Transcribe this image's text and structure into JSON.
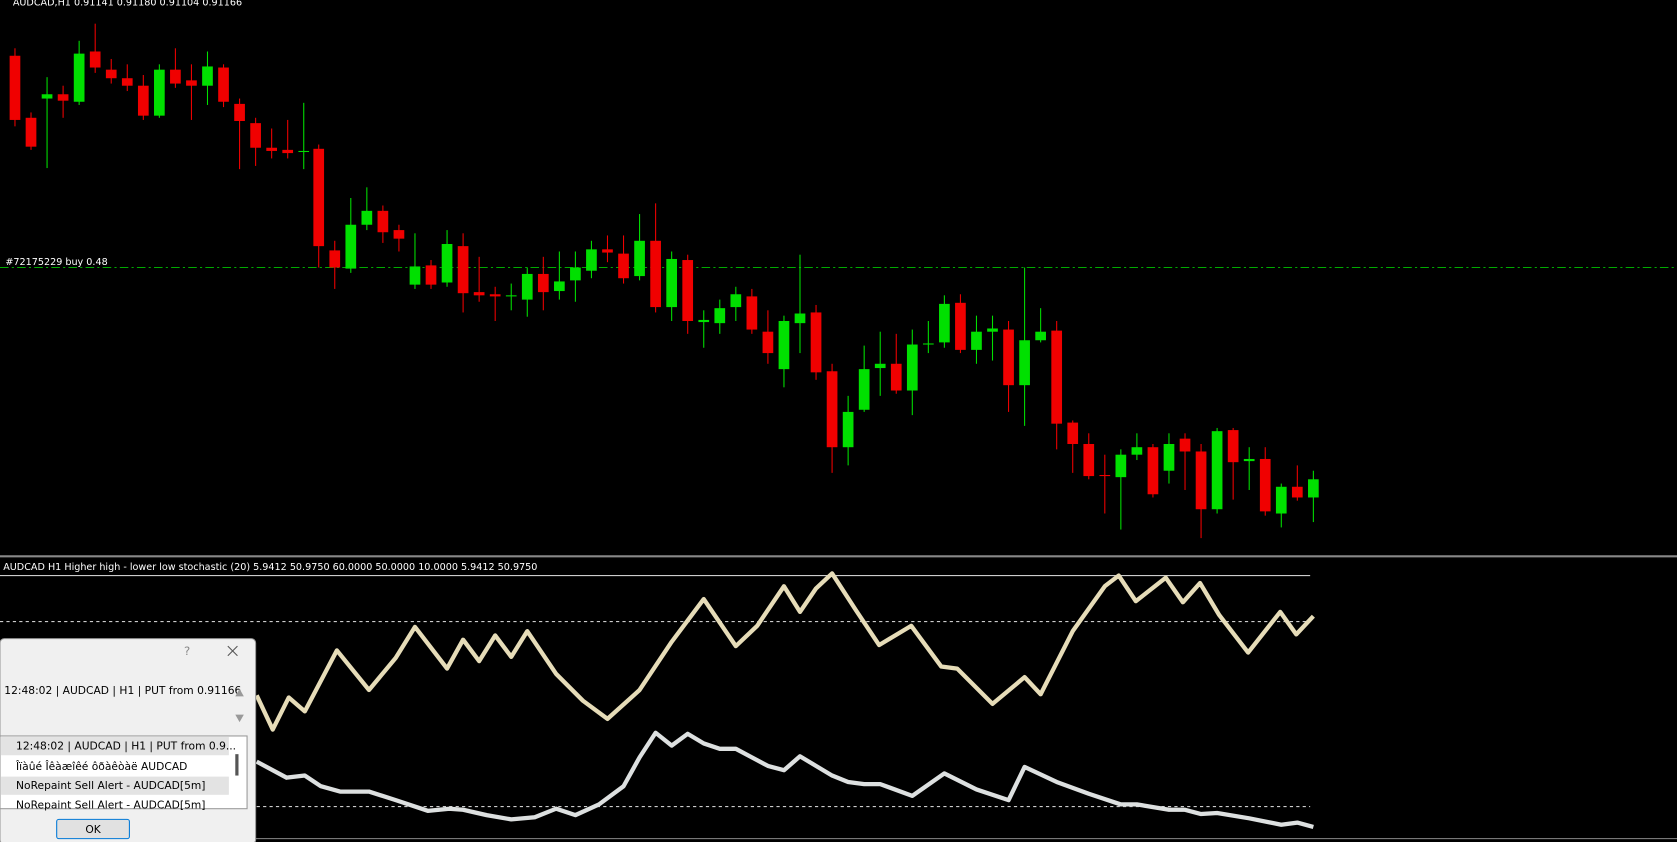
{
  "chart_window": {
    "header": "AUDCAD,H1  0.91141 0.91180 0.91104 0.91166",
    "order_label": "#72175229 buy 0.48"
  },
  "indicator": {
    "label": "AUDCAD H1  Higher high - lower low stochastic (20) 5.9412 50.9750 60.0000 50.0000 10.0000 5.9412 50.9750"
  },
  "alert_dialog": {
    "help": "?",
    "message": "12:48:02 | AUDCAD | H1 | PUT from 0.91166",
    "list": [
      "12:48:02 | AUDCAD | H1 | PUT from 0.9...",
      "Îïàûé Îêàæîêé ôðàêòàë AUDCAD",
      "NoRepaint Sell Alert - AUDCAD[5m]",
      "NoRepaint Sell Alert - AUDCAD[5m]"
    ],
    "ok_button": "OK"
  }
}
